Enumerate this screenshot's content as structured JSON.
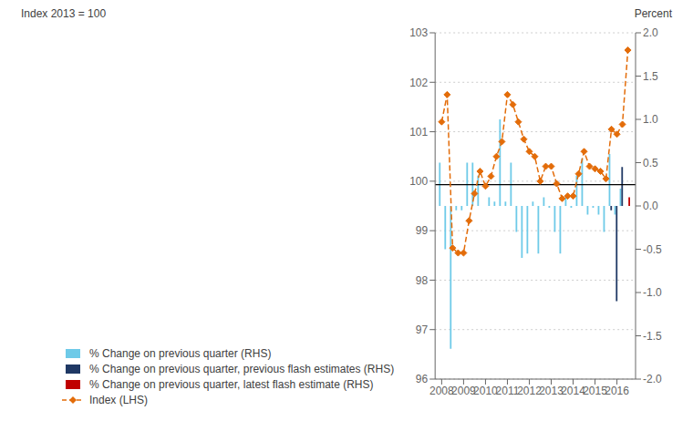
{
  "chart_data": {
    "type": "bar",
    "y_label": "Index 2013 = 100",
    "y2_label": "Percent",
    "xlim": [
      2007.7,
      2016.85
    ],
    "xticks": [
      2008,
      2009,
      2010,
      2011,
      2012,
      2013,
      2014,
      2015,
      2016
    ],
    "ylim": [
      96,
      103
    ],
    "yticks": [
      96,
      97,
      98,
      99,
      100,
      101,
      102,
      103
    ],
    "y2lim": [
      -2.0,
      2.0
    ],
    "y2ticks": [
      {
        "value": -2.0,
        "label": "-2.0"
      },
      -1.5,
      {
        "value": -1.0,
        "label": "-1.0"
      },
      -0.5,
      {
        "value": 0.0,
        "label": "0.0"
      },
      0.5,
      {
        "value": 1.0,
        "label": "1.0"
      },
      1.5,
      {
        "value": 2.0,
        "label": "2.0"
      }
    ],
    "grid": true,
    "legend": "bottom",
    "hline": {
      "value": 99.93,
      "color": "#000000"
    },
    "series": [
      {
        "name": "% Change on previous quarter (RHS)",
        "type": "bar",
        "axis": "y2",
        "color": "#6ecae8",
        "x": [
          2008.0,
          2008.25,
          2008.5,
          2008.75,
          2009.0,
          2009.25,
          2009.5,
          2009.75,
          2010.0,
          2010.25,
          2010.5,
          2010.75,
          2011.0,
          2011.25,
          2011.5,
          2011.75,
          2012.0,
          2012.25,
          2012.5,
          2012.75,
          2013.0,
          2013.25,
          2013.5,
          2013.75,
          2014.0,
          2014.25,
          2014.5,
          2014.75,
          2015.0,
          2015.25,
          2015.5,
          2015.75,
          2016.0,
          2016.25
        ],
        "values": [
          0.5,
          -0.5,
          -1.65,
          -0.05,
          -0.05,
          0.5,
          0.5,
          0.35,
          0.0,
          0.1,
          0.05,
          1.0,
          0.05,
          0.5,
          -0.3,
          -0.6,
          -0.55,
          0.05,
          -0.55,
          0.1,
          -0.02,
          -0.3,
          -0.55,
          0.1,
          -0.02,
          0.35,
          0.55,
          -0.1,
          -0.02,
          -0.1,
          -0.3,
          0.6,
          -0.1,
          0.2
        ]
      },
      {
        "name": "% Change on previous quarter, previous flash estimates (RHS)",
        "type": "bar",
        "axis": "y2",
        "color": "#1f3864",
        "x": [
          2015.75,
          2016.0,
          2016.25
        ],
        "values": [
          -0.05,
          -1.1,
          0.45
        ]
      },
      {
        "name": "% Change on previous quarter, latest flash estimate (RHS)",
        "type": "bar",
        "axis": "y2",
        "color": "#c00000",
        "x": [
          2016.5
        ],
        "values": [
          0.1
        ]
      },
      {
        "name": "Index (LHS)",
        "type": "line",
        "color": "#e36c09",
        "line_style": "dashed",
        "marker": "diamond",
        "x": [
          2008.0,
          2008.25,
          2008.5,
          2008.75,
          2009.0,
          2009.25,
          2009.5,
          2009.75,
          2010.0,
          2010.25,
          2010.5,
          2010.75,
          2011.0,
          2011.25,
          2011.5,
          2011.75,
          2012.0,
          2012.25,
          2012.5,
          2012.75,
          2013.0,
          2013.25,
          2013.5,
          2013.75,
          2014.0,
          2014.25,
          2014.5,
          2014.75,
          2015.0,
          2015.25,
          2015.5,
          2015.75,
          2016.0,
          2016.25,
          2016.5
        ],
        "values": [
          101.2,
          101.75,
          98.65,
          98.55,
          98.55,
          99.2,
          99.75,
          100.2,
          99.9,
          100.1,
          100.5,
          100.8,
          101.75,
          101.55,
          101.2,
          100.85,
          100.6,
          100.5,
          100.0,
          100.3,
          100.3,
          99.95,
          99.65,
          99.7,
          99.7,
          100.15,
          100.6,
          100.3,
          100.25,
          100.2,
          100.05,
          101.05,
          100.95,
          101.15,
          102.65
        ]
      }
    ]
  }
}
